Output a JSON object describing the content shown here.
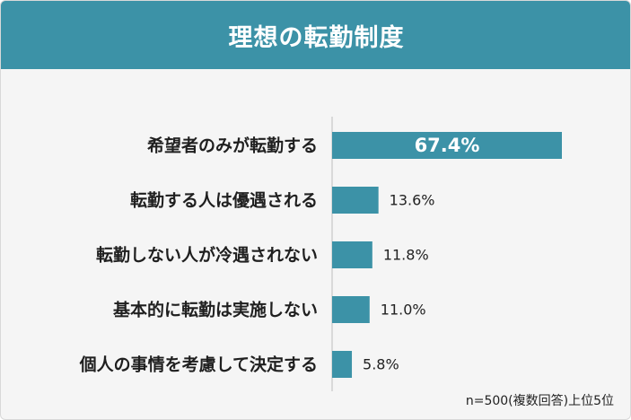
{
  "chart_data": {
    "type": "bar",
    "title": "理想の転勤制度",
    "categories": [
      "希望者のみが転勤する",
      "転勤する人は優遇される",
      "転勤しない人が冷遇されない",
      "基本的に転勤は実施しない",
      "個人の事情を考慮して決定する"
    ],
    "values": [
      67.4,
      13.6,
      11.8,
      11.0,
      5.8
    ],
    "value_labels": [
      "67.4%",
      "13.6%",
      "11.8%",
      "11.0%",
      "5.8%"
    ],
    "xlim": [
      0,
      100
    ],
    "grid": false,
    "bar_color": "#3c92a7",
    "footnote": "n=500(複数回答)上位5位"
  }
}
